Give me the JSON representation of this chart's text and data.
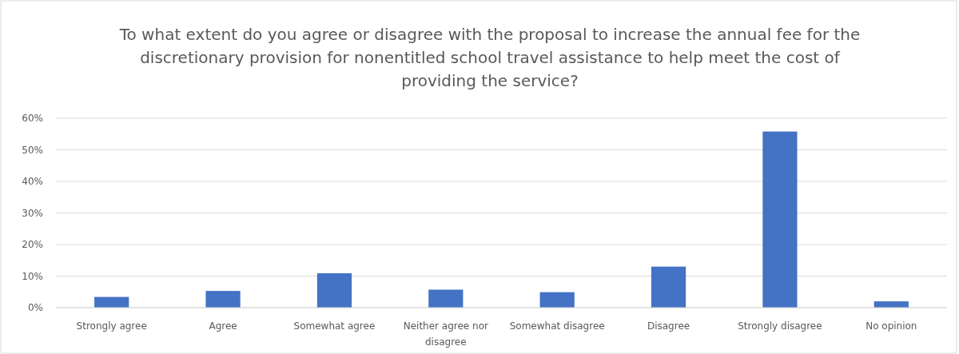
{
  "chart_data": {
    "type": "bar",
    "title": "To what extent do you agree or disagree with the proposal to increase the annual fee for the discretionary provision for nonentitled school travel assistance to help meet the cost of providing the service?",
    "categories": [
      "Strongly agree",
      "Agree",
      "Somewhat agree",
      "Neither agree nor disagree",
      "Somewhat disagree",
      "Disagree",
      "Strongly disagree",
      "No opinion"
    ],
    "values": [
      3.4,
      5.3,
      10.9,
      5.7,
      4.9,
      13.0,
      55.8,
      2.0
    ],
    "color": "#4472c4",
    "ylim": [
      0,
      60
    ],
    "yticks": [
      {
        "value": 0,
        "label": "0%"
      },
      {
        "value": 10,
        "label": "10%"
      },
      {
        "value": 20,
        "label": "20%"
      },
      {
        "value": 30,
        "label": "30%"
      },
      {
        "value": 40,
        "label": "40%"
      },
      {
        "value": 50,
        "label": "50%"
      },
      {
        "value": 60,
        "label": "60%"
      }
    ],
    "grid": "y"
  }
}
